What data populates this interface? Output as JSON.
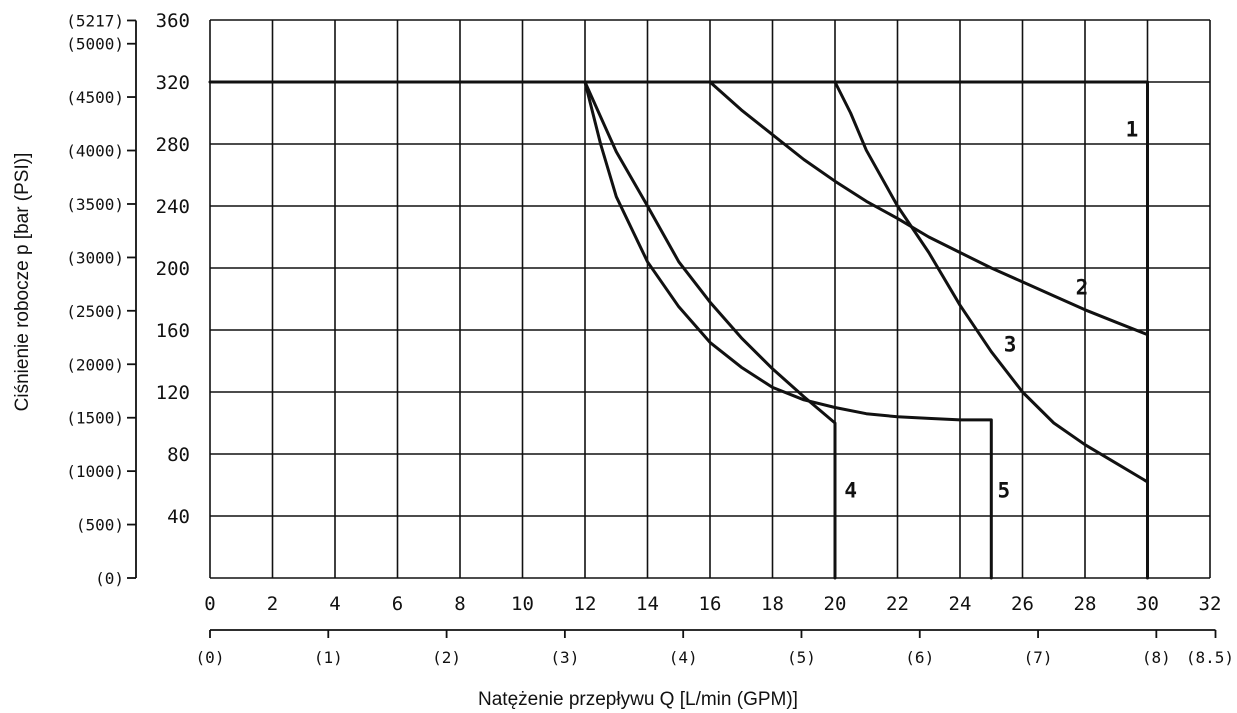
{
  "chart_data": {
    "type": "line",
    "title": "",
    "xlabel": "Natężenie przepływu Q [L/min (GPM)]",
    "ylabel": "Ciśnienie robocze p [bar (PSI)]",
    "xlim": [
      0,
      32
    ],
    "ylim": [
      0,
      360
    ],
    "grid": true,
    "x_ticks": [
      "0",
      "2",
      "4",
      "6",
      "8",
      "10",
      "12",
      "14",
      "16",
      "18",
      "20",
      "22",
      "24",
      "26",
      "28",
      "30",
      "32"
    ],
    "x_tick_values": [
      0,
      2,
      4,
      6,
      8,
      10,
      12,
      14,
      16,
      18,
      20,
      22,
      24,
      26,
      28,
      30,
      32
    ],
    "x_secondary_ticks": [
      {
        "label": "(0)",
        "value": 0
      },
      {
        "label": "(1)",
        "value": 3.785
      },
      {
        "label": "(2)",
        "value": 7.571
      },
      {
        "label": "(3)",
        "value": 11.356
      },
      {
        "label": "(4)",
        "value": 15.142
      },
      {
        "label": "(5)",
        "value": 18.927
      },
      {
        "label": "(6)",
        "value": 22.712
      },
      {
        "label": "(7)",
        "value": 26.498
      },
      {
        "label": "(8)",
        "value": 30.283
      },
      {
        "label": "(8.5)",
        "value": 32.176
      }
    ],
    "y_ticks": [
      "40",
      "80",
      "120",
      "160",
      "200",
      "240",
      "280",
      "320",
      "360"
    ],
    "y_tick_values": [
      40,
      80,
      120,
      160,
      200,
      240,
      280,
      320,
      360
    ],
    "y_secondary_ticks": [
      {
        "label": "(0)",
        "value": 0
      },
      {
        "label": "(500)",
        "value": 34.47
      },
      {
        "label": "(1000)",
        "value": 68.95
      },
      {
        "label": "(1500)",
        "value": 103.4
      },
      {
        "label": "(2000)",
        "value": 137.9
      },
      {
        "label": "(2500)",
        "value": 172.4
      },
      {
        "label": "(3000)",
        "value": 206.8
      },
      {
        "label": "(3500)",
        "value": 241.3
      },
      {
        "label": "(4000)",
        "value": 275.8
      },
      {
        "label": "(4500)",
        "value": 310.3
      },
      {
        "label": "(5000)",
        "value": 344.7
      },
      {
        "label": "(5217)",
        "value": 359.7
      }
    ],
    "series": [
      {
        "name": "1",
        "label_at": [
          29.3,
          285
        ],
        "points": [
          [
            0,
            320
          ],
          [
            30,
            320
          ],
          [
            30,
            0
          ]
        ]
      },
      {
        "name": "2",
        "label_at": [
          27.7,
          183
        ],
        "points": [
          [
            16,
            320
          ],
          [
            17,
            302
          ],
          [
            18,
            286
          ],
          [
            19,
            270
          ],
          [
            20,
            256
          ],
          [
            21,
            243
          ],
          [
            22,
            232
          ],
          [
            23,
            220
          ],
          [
            24,
            210
          ],
          [
            25,
            200
          ],
          [
            26,
            191
          ],
          [
            27,
            182
          ],
          [
            28,
            173
          ],
          [
            29,
            165
          ],
          [
            30,
            157
          ]
        ]
      },
      {
        "name": "3",
        "label_at": [
          25.4,
          146
        ],
        "points": [
          [
            20,
            320
          ],
          [
            20.5,
            300
          ],
          [
            21,
            276
          ],
          [
            22,
            240
          ],
          [
            23,
            210
          ],
          [
            24,
            176
          ],
          [
            25,
            146
          ],
          [
            26,
            120
          ],
          [
            27,
            100
          ],
          [
            28,
            86
          ],
          [
            29,
            74
          ],
          [
            30,
            62
          ]
        ]
      },
      {
        "name": "4",
        "label_at": [
          20.3,
          52
        ],
        "points": [
          [
            12,
            320
          ],
          [
            13,
            275
          ],
          [
            14,
            240
          ],
          [
            15,
            204
          ],
          [
            16,
            178
          ],
          [
            17,
            155
          ],
          [
            18,
            135
          ],
          [
            19,
            117
          ],
          [
            20,
            100
          ],
          [
            20,
            0
          ]
        ]
      },
      {
        "name": "5",
        "label_at": [
          25.2,
          52
        ],
        "points": [
          [
            12,
            320
          ],
          [
            12.5,
            280
          ],
          [
            13,
            246
          ],
          [
            14,
            204
          ],
          [
            15,
            175
          ],
          [
            16,
            152
          ],
          [
            17,
            136
          ],
          [
            18,
            123
          ],
          [
            19,
            115
          ],
          [
            20,
            110
          ],
          [
            21,
            106
          ],
          [
            22,
            104
          ],
          [
            23,
            103
          ],
          [
            24,
            102
          ],
          [
            25,
            102
          ],
          [
            25,
            0
          ]
        ]
      }
    ]
  }
}
